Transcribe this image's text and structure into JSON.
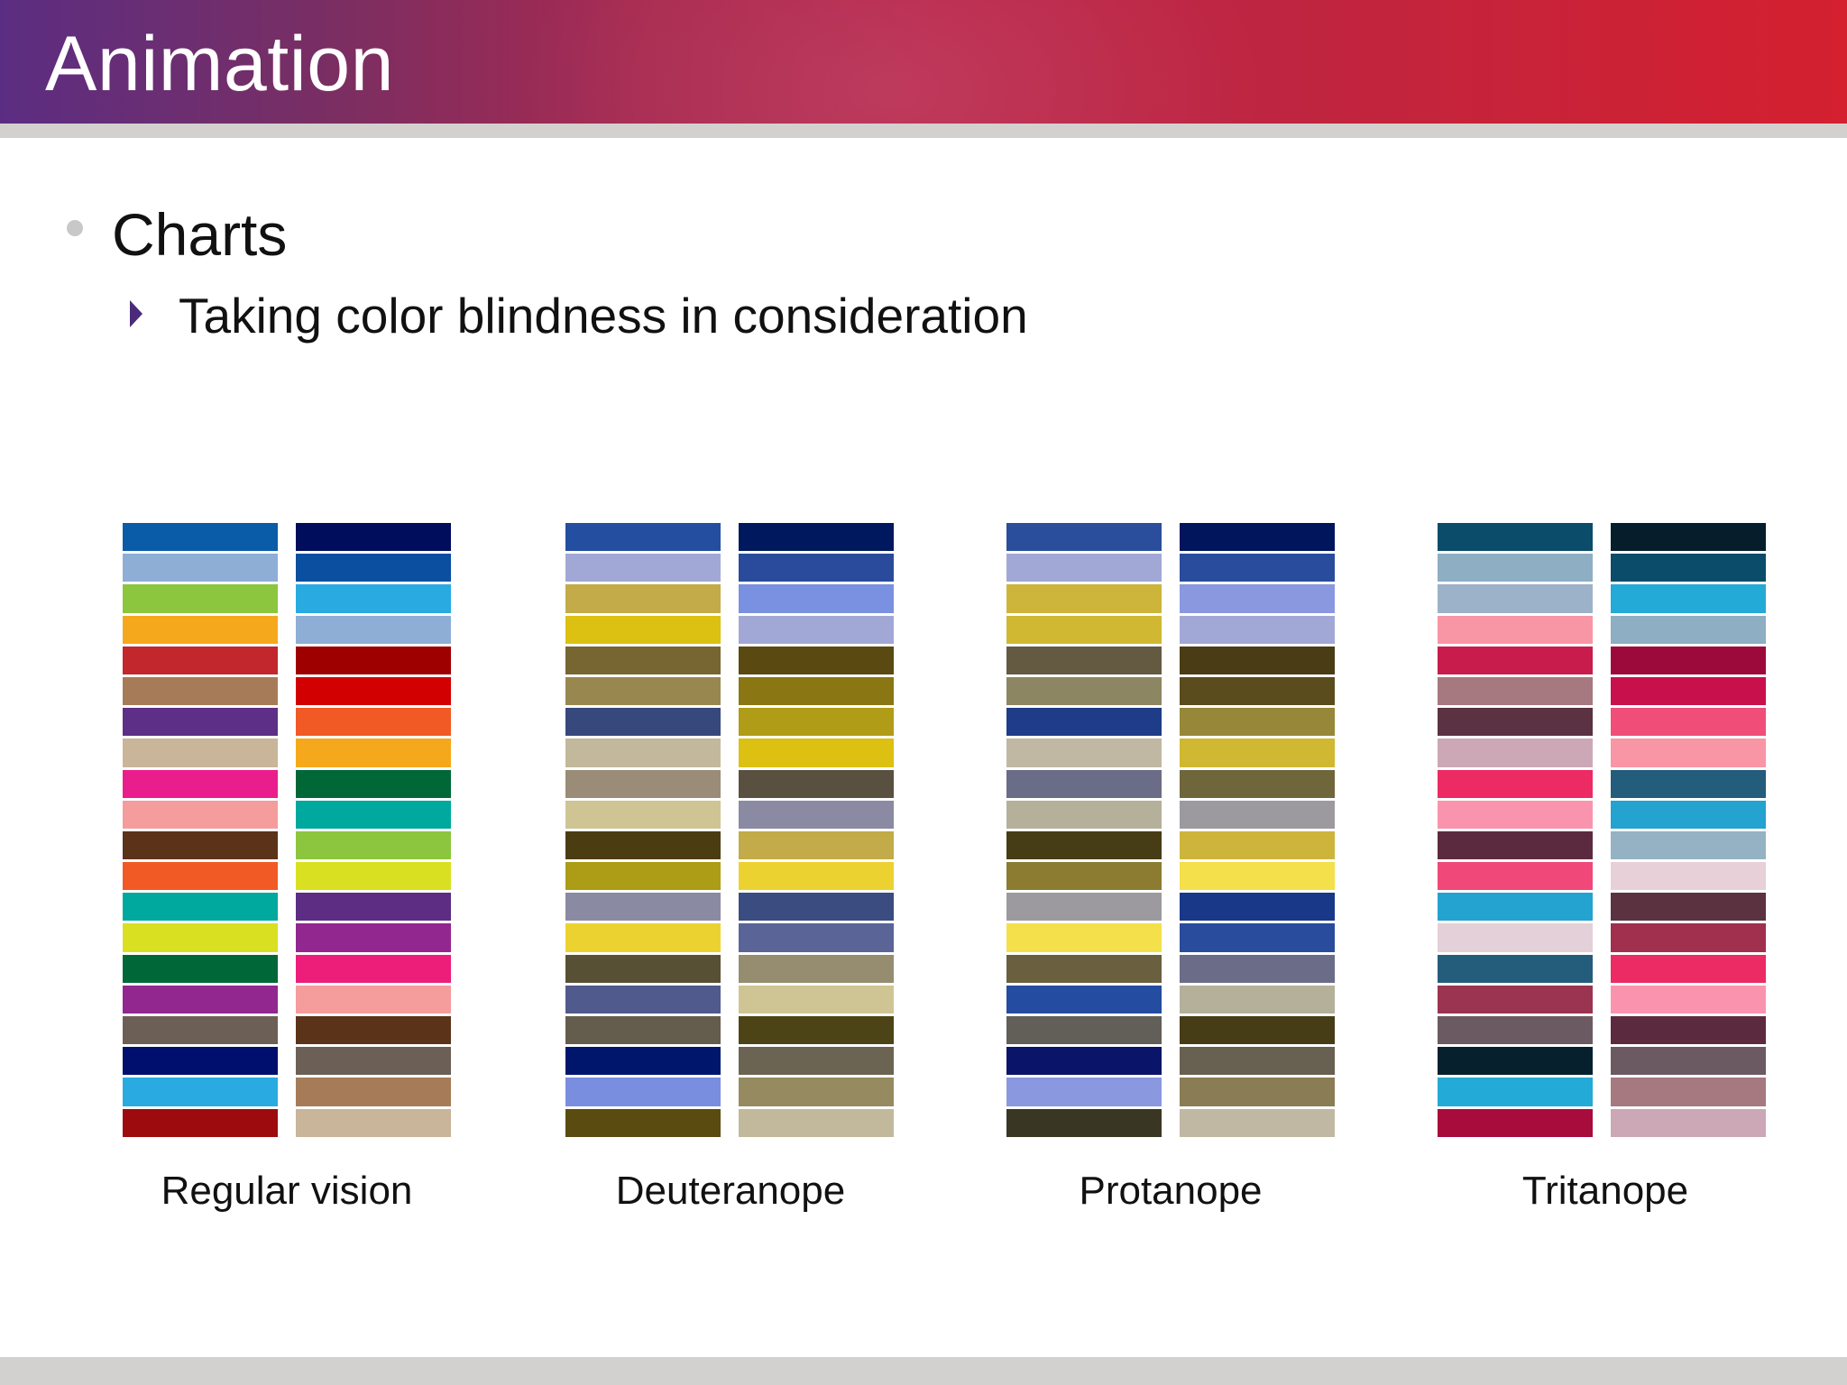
{
  "header": {
    "title": "Animation"
  },
  "bullets": {
    "level1": "Charts",
    "level2": "Taking color blindness in consideration"
  },
  "palettes": [
    {
      "label": "Regular vision",
      "left": [
        "#0a5ba8",
        "#8eaed6",
        "#8cc63e",
        "#f6a81c",
        "#c1272d",
        "#a67c58",
        "#5d2f86",
        "#c8b59a",
        "#e91e8c",
        "#f59c9c",
        "#5a3318",
        "#f15a24",
        "#00a99d",
        "#d9e021",
        "#006838",
        "#92278f",
        "#6c6056",
        "#000f6e",
        "#29abe2",
        "#9e0b0f"
      ],
      "right": [
        "#000d5c",
        "#0a4fa0",
        "#29abe2",
        "#8eaed6",
        "#9e0000",
        "#d20000",
        "#f15a24",
        "#f6a81c",
        "#006837",
        "#00a99d",
        "#8cc63e",
        "#d9e021",
        "#5c2d82",
        "#92278f",
        "#ec1e79",
        "#f59c9c",
        "#5a3318",
        "#6c6056",
        "#a67c58",
        "#c8b59a"
      ]
    },
    {
      "label": "Deuteranope",
      "left": [
        "#244ea0",
        "#a2a8d6",
        "#c2ab48",
        "#dcc012",
        "#776632",
        "#988850",
        "#37487c",
        "#c2b99c",
        "#9a8c76",
        "#cfc594",
        "#4c3c12",
        "#ac9c16",
        "#8a8aa2",
        "#ecd230",
        "#585034",
        "#515a8c",
        "#645c4c",
        "#00166c",
        "#7a8ee0",
        "#5a4c10"
      ],
      "right": [
        "#00185e",
        "#2a4b9c",
        "#7a90e0",
        "#a2a8d6",
        "#5a4910",
        "#8a7612",
        "#b09c16",
        "#dcc012",
        "#5a5040",
        "#8a8aa2",
        "#c2ab48",
        "#ecd230",
        "#3a4c80",
        "#5a6496",
        "#968c70",
        "#cfc594",
        "#4c4416",
        "#6c6452",
        "#968a60",
        "#c2b99c"
      ]
    },
    {
      "label": "Protanope",
      "left": [
        "#2a4e9c",
        "#a2a8d6",
        "#cdb53c",
        "#d0b832",
        "#645a42",
        "#8c8662",
        "#1e3c88",
        "#c0b8a2",
        "#6a6c88",
        "#b4b09a",
        "#463c16",
        "#8c7c32",
        "#9c9a9e",
        "#f4e04a",
        "#6a6040",
        "#244ca0",
        "#625e58",
        "#0a1468",
        "#8a98e0",
        "#3a3624"
      ],
      "right": [
        "#00155c",
        "#2a4c9c",
        "#8a98e0",
        "#a2a8d6",
        "#4a3c14",
        "#5a4c1c",
        "#968838",
        "#d0b832",
        "#70663c",
        "#9c9a9e",
        "#cdb53c",
        "#f4e04a",
        "#1a3888",
        "#2a4c9c",
        "#6a6c88",
        "#b4b09a",
        "#463c16",
        "#686050",
        "#8a7c54",
        "#c0b8a2"
      ]
    },
    {
      "label": "Tritanope",
      "left": [
        "#0a4c6a",
        "#8eaec4",
        "#9cb2c8",
        "#f896a6",
        "#c81c4c",
        "#a67880",
        "#5a3242",
        "#cca8b6",
        "#ec2a64",
        "#fa94ae",
        "#5c2a3e",
        "#f04878",
        "#24a2d0",
        "#e4d0d8",
        "#245c7c",
        "#9a3450",
        "#6c5a62",
        "#06202e",
        "#24aad6",
        "#a80c3c"
      ],
      "right": [
        "#061e2c",
        "#0a4c6a",
        "#24aad6",
        "#8eaec4",
        "#9c0a3c",
        "#c8104c",
        "#f04e78",
        "#f896a6",
        "#245c7c",
        "#24a2d0",
        "#94b2c4",
        "#e8d0d8",
        "#5a3240",
        "#a0304e",
        "#ec2a64",
        "#fa94ae",
        "#5c2a3e",
        "#6c5a62",
        "#a67880",
        "#cca8b6"
      ]
    }
  ]
}
